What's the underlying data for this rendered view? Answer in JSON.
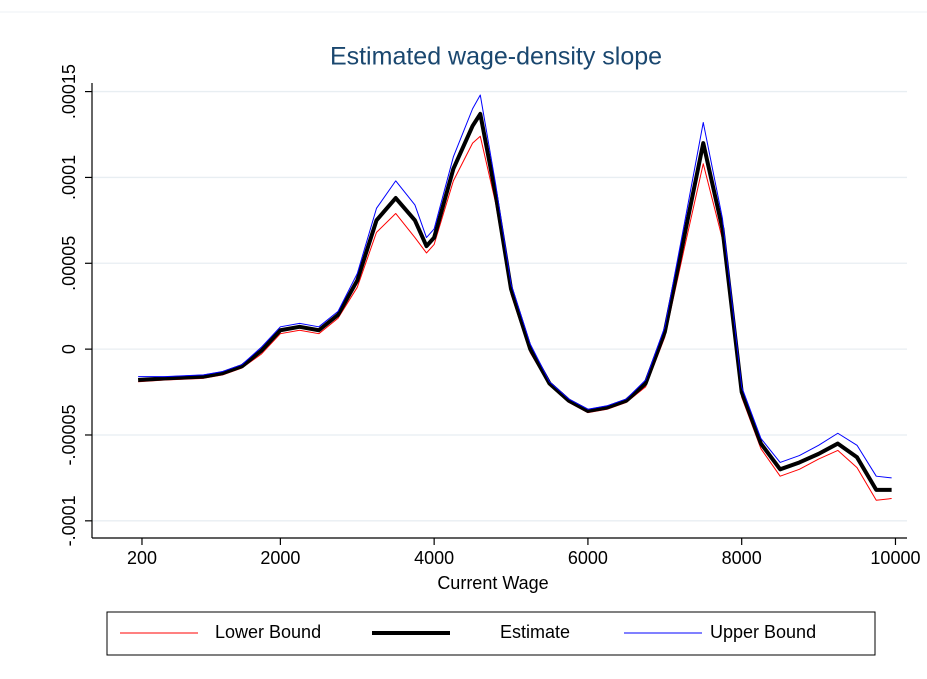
{
  "chart_data": {
    "type": "line",
    "title": "Estimated wage-density slope",
    "x_label": "Current Wage",
    "x": [
      150,
      500,
      1000,
      1250,
      1500,
      1750,
      2000,
      2250,
      2500,
      2750,
      3000,
      3250,
      3500,
      3750,
      3900,
      4000,
      4250,
      4500,
      4600,
      4800,
      5000,
      5250,
      5500,
      5750,
      6000,
      6250,
      6500,
      6750,
      7000,
      7250,
      7500,
      7750,
      8000,
      8250,
      8500,
      8750,
      9000,
      9250,
      9500,
      9750,
      9950
    ],
    "series": [
      {
        "name": "Lower Bound",
        "color": "#ff0000",
        "width": 1,
        "values": [
          -1.9e-05,
          -1.8e-05,
          -1.7e-05,
          -1.5e-05,
          -1.1e-05,
          -3e-06,
          9e-06,
          1.1e-05,
          9e-06,
          1.8e-05,
          3.6e-05,
          6.8e-05,
          7.9e-05,
          6.5e-05,
          5.6e-05,
          6.1e-05,
          9.8e-05,
          0.00012,
          0.000124,
          8.5e-05,
          3.2e-05,
          -2e-06,
          -2.1e-05,
          -3.1e-05,
          -3.7e-05,
          -3.5e-05,
          -3.1e-05,
          -2.2e-05,
          7e-06,
          5.8e-05,
          0.000108,
          6.4e-05,
          -2.8e-05,
          -5.8e-05,
          -7.4e-05,
          -7e-05,
          -6.4e-05,
          -5.9e-05,
          -6.9e-05,
          -8.8e-05,
          -8.7e-05
        ]
      },
      {
        "name": "Estimate",
        "color": "#000000",
        "width": 4,
        "values": [
          -1.8e-05,
          -1.7e-05,
          -1.6e-05,
          -1.4e-05,
          -1e-05,
          -1e-06,
          1.1e-05,
          1.3e-05,
          1.1e-05,
          2e-05,
          4e-05,
          7.5e-05,
          8.8e-05,
          7.5e-05,
          6e-05,
          6.5e-05,
          0.000105,
          0.00013,
          0.000137,
          9e-05,
          3.5e-05,
          0,
          -2e-05,
          -3e-05,
          -3.6e-05,
          -3.4e-05,
          -3e-05,
          -2e-05,
          1e-05,
          6.5e-05,
          0.00012,
          7e-05,
          -2.5e-05,
          -5.5e-05,
          -7e-05,
          -6.6e-05,
          -6.1e-05,
          -5.5e-05,
          -6.3e-05,
          -8.2e-05,
          -8.2e-05
        ]
      },
      {
        "name": "Upper Bound",
        "color": "#0000ff",
        "width": 1,
        "values": [
          -1.6e-05,
          -1.6e-05,
          -1.5e-05,
          -1.3e-05,
          -9e-06,
          1e-06,
          1.3e-05,
          1.5e-05,
          1.3e-05,
          2.2e-05,
          4.4e-05,
          8.2e-05,
          9.8e-05,
          8.4e-05,
          6.5e-05,
          7e-05,
          0.000112,
          0.00014,
          0.000148,
          9.6e-05,
          3.8e-05,
          3e-06,
          -1.9e-05,
          -2.9e-05,
          -3.5e-05,
          -3.3e-05,
          -2.9e-05,
          -1.8e-05,
          1.3e-05,
          7.2e-05,
          0.000132,
          7.6e-05,
          -2.2e-05,
          -5.2e-05,
          -6.6e-05,
          -6.2e-05,
          -5.6e-05,
          -4.9e-05,
          -5.6e-05,
          -7.4e-05,
          -7.5e-05
        ]
      }
    ],
    "xlim": [
      -450,
      10150
    ],
    "ylim": [
      -0.00011,
      0.000155
    ],
    "xticks": [
      200,
      2000,
      4000,
      6000,
      8000,
      10000
    ],
    "yticks": [
      {
        "value": -0.0001,
        "label": "-.0001"
      },
      {
        "value": -5e-05,
        "label": "-.00005"
      },
      0,
      {
        "value": 5e-05,
        "label": ".00005"
      },
      {
        "value": 0.0001,
        "label": ".0001"
      },
      {
        "value": 0.00015,
        "label": ".00015"
      }
    ],
    "grid": true,
    "legend": "bottom"
  }
}
